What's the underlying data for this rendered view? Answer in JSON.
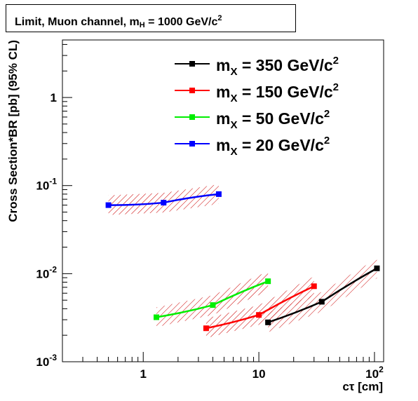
{
  "chart_data": {
    "type": "line",
    "title": {
      "main": "Limit, Muon channel, m",
      "sub": "H",
      "rest": " = 1000 GeV/c",
      "sup": "2"
    },
    "xlabel": "cτ [cm]",
    "ylabel": "Cross Section*BR [pb] (95% CL)",
    "x_scale": "log",
    "y_scale": "log",
    "xlim": [
      0.2,
      120
    ],
    "ylim": [
      0.001,
      4.5
    ],
    "legend_placement": "top-right",
    "x_ticks": [
      {
        "value": 1,
        "base": "1",
        "exp": ""
      },
      {
        "value": 10,
        "base": "10",
        "exp": ""
      },
      {
        "value": 100,
        "base": "10",
        "exp": "2"
      }
    ],
    "y_ticks": [
      {
        "value": 0.001,
        "base": "10",
        "exp": "-3"
      },
      {
        "value": 0.01,
        "base": "10",
        "exp": "-2"
      },
      {
        "value": 0.1,
        "base": "10",
        "exp": "-1"
      },
      {
        "value": 1,
        "base": "1",
        "exp": ""
      }
    ],
    "series": [
      {
        "name": "m_X = 350 GeV/c^2",
        "label_main": "m",
        "label_sub": "X",
        "label_rest": " = 350 GeV/c",
        "label_sup": "2",
        "color": "#000000",
        "x": [
          12,
          35,
          105
        ],
        "y": [
          0.0028,
          0.0048,
          0.0115
        ]
      },
      {
        "name": "m_X = 150 GeV/c^2",
        "label_main": "m",
        "label_sub": "X",
        "label_rest": " = 150 GeV/c",
        "label_sup": "2",
        "color": "#ff0000",
        "x": [
          3.5,
          10,
          30
        ],
        "y": [
          0.0024,
          0.0034,
          0.0072
        ]
      },
      {
        "name": "m_X = 50 GeV/c^2",
        "label_main": "m",
        "label_sub": "X",
        "label_rest": " = 50 GeV/c",
        "label_sup": "2",
        "color": "#00ee00",
        "x": [
          1.3,
          4,
          12
        ],
        "y": [
          0.0032,
          0.0044,
          0.0082
        ]
      },
      {
        "name": "m_X = 20 GeV/c^2",
        "label_main": "m",
        "label_sub": "X",
        "label_rest": " = 20 GeV/c",
        "label_sup": "2",
        "color": "#0000ff",
        "x": [
          0.5,
          1.5,
          4.5
        ],
        "y": [
          0.06,
          0.064,
          0.08
        ]
      }
    ],
    "band_color": "#cc0000"
  }
}
